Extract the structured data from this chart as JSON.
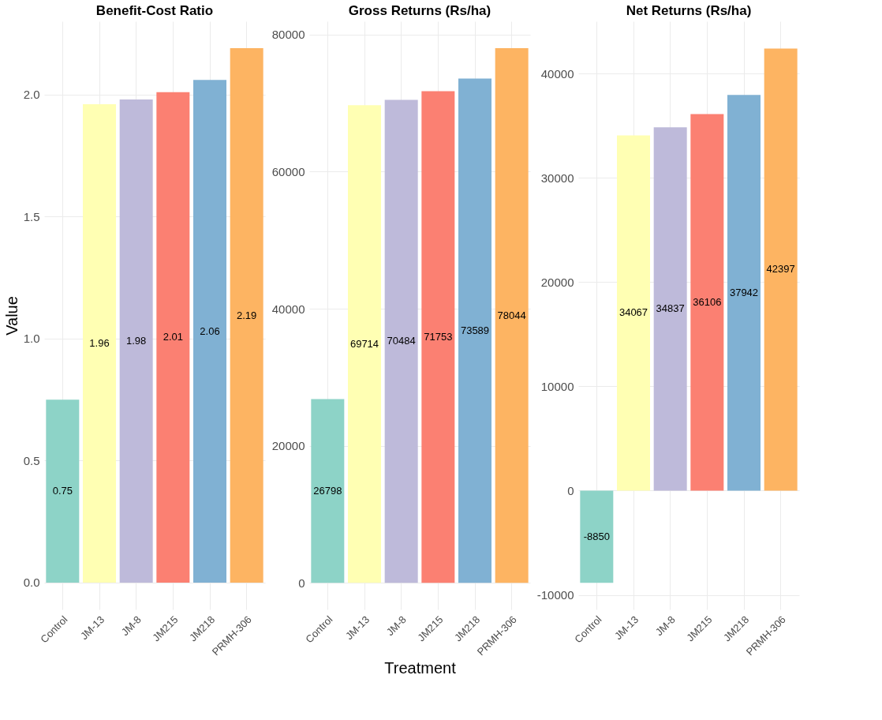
{
  "chart_data": [
    {
      "type": "bar",
      "title": "Benefit-Cost Ratio",
      "ylabel": "Value",
      "categories": [
        "Control",
        "JM-13",
        "JM-8",
        "JM215",
        "JM218",
        "PRMH-306"
      ],
      "values": [
        0.75,
        1.96,
        1.98,
        2.01,
        2.06,
        2.19
      ],
      "colors": [
        "#8dd3c7",
        "#ffffb3",
        "#bebada",
        "#fb8072",
        "#80b1d3",
        "#fdb462"
      ],
      "ylim": [
        -0.11,
        2.3
      ],
      "yticks": [
        {
          "value": 0,
          "label": "0.0"
        },
        0.5,
        {
          "value": 1,
          "label": "1.0"
        },
        1.5,
        {
          "value": 2,
          "label": "2.0"
        }
      ],
      "grid": true,
      "data_labels": true
    },
    {
      "type": "bar",
      "title": "Gross Returns (Rs/ha)",
      "xlabel": "Treatment",
      "categories": [
        "Control",
        "JM-13",
        "JM-8",
        "JM215",
        "JM218",
        "PRMH-306"
      ],
      "values": [
        26798,
        69714,
        70484,
        71753,
        73589,
        78044
      ],
      "colors": [
        "#8dd3c7",
        "#ffffb3",
        "#bebada",
        "#fb8072",
        "#80b1d3",
        "#fdb462"
      ],
      "ylim": [
        -3900,
        81950
      ],
      "yticks": [
        0,
        20000,
        40000,
        60000,
        80000
      ],
      "grid": true,
      "data_labels": true
    },
    {
      "type": "bar",
      "title": "Net Returns (Rs/ha)",
      "categories": [
        "Control",
        "JM-13",
        "JM-8",
        "JM215",
        "JM218",
        "PRMH-306"
      ],
      "values": [
        -8850,
        34067,
        34837,
        36106,
        37942,
        42397
      ],
      "colors": [
        "#8dd3c7",
        "#ffffb3",
        "#bebada",
        "#fb8072",
        "#80b1d3",
        "#fdb462"
      ],
      "ylim": [
        -11400,
        45000
      ],
      "yticks": [
        -10000,
        0,
        10000,
        20000,
        30000,
        40000
      ],
      "grid": true,
      "data_labels": true
    }
  ]
}
